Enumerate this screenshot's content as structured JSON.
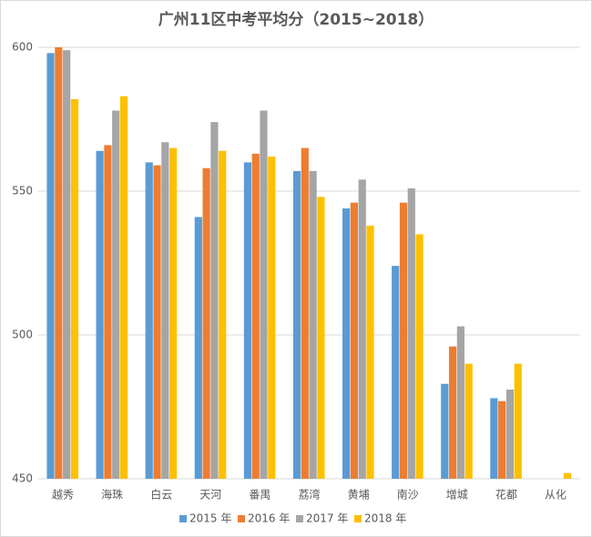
{
  "chart_data": {
    "type": "bar",
    "title": "广州11区中考平均分（2015~2018）",
    "categories": [
      "越秀",
      "海珠",
      "白云",
      "天河",
      "番禺",
      "荔湾",
      "黄埔",
      "南沙",
      "增城",
      "花都",
      "从化"
    ],
    "series": [
      {
        "name": "2015 年",
        "color": "#5b9bd5",
        "values": [
          598,
          564,
          560,
          541,
          560,
          557,
          544,
          524,
          483,
          478,
          null
        ]
      },
      {
        "name": "2016 年",
        "color": "#ed7d31",
        "values": [
          600,
          566,
          559,
          558,
          563,
          565,
          546,
          546,
          496,
          477,
          null
        ]
      },
      {
        "name": "2017 年",
        "color": "#a5a5a5",
        "values": [
          599,
          578,
          567,
          574,
          578,
          557,
          554,
          551,
          503,
          481,
          null
        ]
      },
      {
        "name": "2018 年",
        "color": "#ffc000",
        "values": [
          582,
          583,
          565,
          564,
          562,
          548,
          538,
          535,
          490,
          490,
          452
        ]
      }
    ],
    "ylim": [
      450,
      600
    ],
    "yticks": [
      450,
      500,
      550,
      600
    ],
    "grid": true,
    "legend": "bottom"
  }
}
